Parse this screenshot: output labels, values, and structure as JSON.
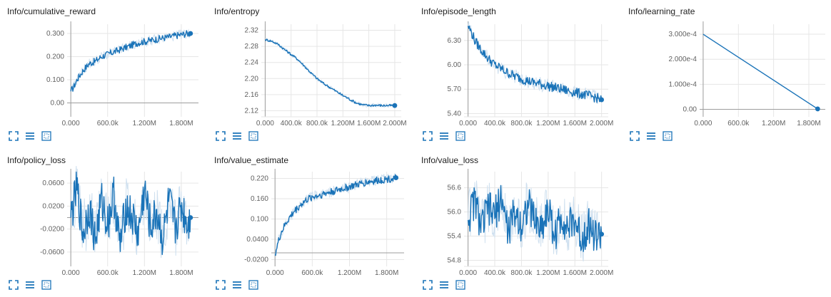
{
  "colors": {
    "line": "#1a73b8",
    "smoothed_bg": "#cfe0ef",
    "grid": "#e6e6e6",
    "axis": "#9e9e9e",
    "icon": "#1a73b8"
  },
  "icons": [
    "expand-icon",
    "lines-icon",
    "fit-domain-icon"
  ],
  "chart_data": [
    {
      "type": "line",
      "title": "Info/cumulative_reward",
      "xlim": [
        -60000,
        2080000
      ],
      "ylim": [
        -0.06,
        0.34
      ],
      "x_ticks": [
        0,
        600000,
        1200000,
        1800000
      ],
      "x_tick_labels": [
        "0.000",
        "600.0k",
        "1.200M",
        "1.800M"
      ],
      "y_ticks": [
        0,
        0.1,
        0.2,
        0.3
      ],
      "y_tick_labels": [
        "0.00",
        "0.100",
        "0.200",
        "0.300"
      ],
      "hline": 0,
      "series": [
        {
          "x": [
            0,
            50000,
            100000,
            200000,
            300000,
            400000,
            500000,
            600000,
            700000,
            800000,
            900000,
            1000000,
            1100000,
            1200000,
            1300000,
            1400000,
            1500000,
            1600000,
            1700000,
            1800000,
            1900000,
            1950000
          ],
          "y": [
            0.05,
            0.07,
            0.1,
            0.14,
            0.17,
            0.18,
            0.2,
            0.21,
            0.22,
            0.23,
            0.24,
            0.25,
            0.26,
            0.265,
            0.27,
            0.275,
            0.28,
            0.285,
            0.29,
            0.295,
            0.3,
            0.3
          ]
        }
      ]
    },
    {
      "type": "line",
      "title": "Info/entropy",
      "xlim": [
        -60000,
        2100000
      ],
      "ylim": [
        2.105,
        2.335
      ],
      "x_ticks": [
        0,
        400000,
        800000,
        1200000,
        1600000,
        2000000
      ],
      "x_tick_labels": [
        "0.000",
        "400.0k",
        "800.0k",
        "1.200M",
        "1.600M",
        "2.000M"
      ],
      "y_ticks": [
        2.12,
        2.16,
        2.2,
        2.24,
        2.28,
        2.32
      ],
      "y_tick_labels": [
        "2.12",
        "2.16",
        "2.20",
        "2.24",
        "2.28",
        "2.32"
      ],
      "series": [
        {
          "x": [
            0,
            100000,
            200000,
            300000,
            400000,
            500000,
            600000,
            700000,
            800000,
            900000,
            1000000,
            1100000,
            1200000,
            1300000,
            1400000,
            1500000,
            1600000,
            1700000,
            1800000,
            1900000,
            2000000
          ],
          "y": [
            2.297,
            2.293,
            2.285,
            2.272,
            2.26,
            2.248,
            2.232,
            2.215,
            2.2,
            2.188,
            2.178,
            2.168,
            2.158,
            2.149,
            2.14,
            2.135,
            2.133,
            2.134,
            2.133,
            2.133,
            2.133
          ]
        }
      ]
    },
    {
      "type": "line",
      "title": "Info/episode_length",
      "xlim": [
        -60000,
        2100000
      ],
      "ylim": [
        5.36,
        6.5
      ],
      "x_ticks": [
        0,
        400000,
        800000,
        1200000,
        1600000,
        2000000
      ],
      "x_tick_labels": [
        "0.000",
        "400.0k",
        "800.0k",
        "1.200M",
        "1.600M",
        "2.000M"
      ],
      "y_ticks": [
        5.4,
        5.7,
        6.0,
        6.3
      ],
      "y_tick_labels": [
        "5.40",
        "5.70",
        "6.00",
        "6.30"
      ],
      "series": [
        {
          "x": [
            0,
            50000,
            100000,
            200000,
            300000,
            400000,
            500000,
            600000,
            700000,
            800000,
            900000,
            1000000,
            1100000,
            1200000,
            1300000,
            1400000,
            1500000,
            1600000,
            1700000,
            1800000,
            1900000,
            2000000
          ],
          "y": [
            6.48,
            6.4,
            6.3,
            6.18,
            6.08,
            6.0,
            5.95,
            5.9,
            5.86,
            5.83,
            5.8,
            5.78,
            5.76,
            5.74,
            5.72,
            5.7,
            5.68,
            5.66,
            5.64,
            5.62,
            5.6,
            5.57
          ]
        }
      ]
    },
    {
      "type": "line",
      "title": "Info/learning_rate",
      "xlim": [
        -60000,
        2080000
      ],
      "ylim": [
        -3e-05,
        0.00034
      ],
      "x_ticks": [
        0,
        600000,
        1200000,
        1800000
      ],
      "x_tick_labels": [
        "0.000",
        "600.0k",
        "1.200M",
        "1.800M"
      ],
      "y_ticks": [
        0,
        0.0001,
        0.0002,
        0.0003
      ],
      "y_tick_labels": [
        "0.00",
        "1.000e-4",
        "2.000e-4",
        "3.000e-4"
      ],
      "hline": 0,
      "series": [
        {
          "x": [
            0,
            1950000
          ],
          "y": [
            0.0003,
            1.5e-06
          ]
        }
      ]
    },
    {
      "type": "line",
      "title": "Info/policy_loss",
      "xlim": [
        -60000,
        2080000
      ],
      "ylim": [
        -0.085,
        0.08
      ],
      "x_ticks": [
        0,
        600000,
        1200000,
        1800000
      ],
      "x_tick_labels": [
        "0.000",
        "600.0k",
        "1.200M",
        "1.800M"
      ],
      "y_ticks": [
        -0.06,
        -0.02,
        0.02,
        0.06
      ],
      "y_tick_labels": [
        "-0.0600",
        "-0.0200",
        "0.0200",
        "0.0600"
      ],
      "hline": 0,
      "series": [
        {
          "x": [
            0,
            100000,
            200000,
            300000,
            400000,
            500000,
            600000,
            700000,
            800000,
            900000,
            1000000,
            1100000,
            1200000,
            1300000,
            1400000,
            1500000,
            1600000,
            1700000,
            1800000,
            1900000,
            1950000
          ],
          "y": [
            0.0,
            0.05,
            -0.03,
            0.02,
            -0.04,
            0.03,
            -0.01,
            0.04,
            -0.05,
            0.02,
            0.0,
            -0.03,
            0.05,
            -0.02,
            0.01,
            -0.04,
            0.03,
            -0.02,
            0.02,
            -0.01,
            0.0
          ]
        }
      ]
    },
    {
      "type": "line",
      "title": "Info/value_estimate",
      "xlim": [
        -60000,
        2080000
      ],
      "ylim": [
        -0.04,
        0.24
      ],
      "x_ticks": [
        0,
        600000,
        1200000,
        1800000
      ],
      "x_tick_labels": [
        "0.000",
        "600.0k",
        "1.200M",
        "1.800M"
      ],
      "y_ticks": [
        -0.02,
        0.04,
        0.1,
        0.16,
        0.22
      ],
      "y_tick_labels": [
        "-0.0200",
        "0.0400",
        "0.100",
        "0.160",
        "0.220"
      ],
      "hline": 0,
      "series": [
        {
          "x": [
            0,
            50000,
            100000,
            200000,
            300000,
            400000,
            500000,
            600000,
            700000,
            800000,
            900000,
            1000000,
            1100000,
            1200000,
            1300000,
            1400000,
            1500000,
            1600000,
            1700000,
            1800000,
            1900000,
            1950000
          ],
          "y": [
            -0.005,
            0.03,
            0.06,
            0.095,
            0.12,
            0.14,
            0.155,
            0.165,
            0.17,
            0.175,
            0.18,
            0.185,
            0.19,
            0.195,
            0.2,
            0.205,
            0.21,
            0.212,
            0.215,
            0.218,
            0.22,
            0.222
          ]
        }
      ]
    },
    {
      "type": "line",
      "title": "Info/value_loss",
      "xlim": [
        -60000,
        2100000
      ],
      "ylim": [
        54.65,
        57.0
      ],
      "x_ticks": [
        0,
        400000,
        800000,
        1200000,
        1600000,
        2000000
      ],
      "x_tick_labels": [
        "0.000",
        "400.0k",
        "800.0k",
        "1.200M",
        "1.600M",
        "2.000M"
      ],
      "y_ticks": [
        54.8,
        55.4,
        56.0,
        56.6
      ],
      "y_tick_labels": [
        "54.8",
        "55.4",
        "56.0",
        "56.6"
      ],
      "series": [
        {
          "x": [
            0,
            100000,
            200000,
            300000,
            400000,
            500000,
            600000,
            700000,
            800000,
            900000,
            1000000,
            1100000,
            1200000,
            1300000,
            1400000,
            1500000,
            1600000,
            1700000,
            1800000,
            1900000,
            2000000
          ],
          "y": [
            55.8,
            56.3,
            55.6,
            56.1,
            55.9,
            56.4,
            55.5,
            56.0,
            55.7,
            56.2,
            55.8,
            55.6,
            56.1,
            55.4,
            55.9,
            55.6,
            55.8,
            55.3,
            55.7,
            55.4,
            55.45
          ]
        }
      ]
    }
  ]
}
